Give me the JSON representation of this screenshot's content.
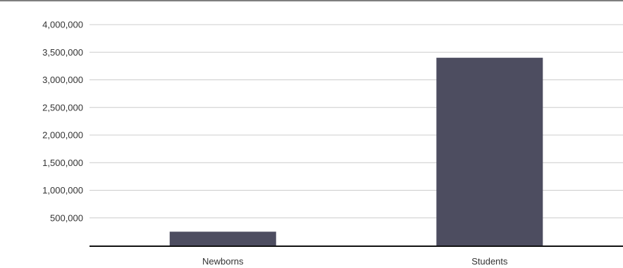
{
  "chart_data": {
    "type": "bar",
    "title": "",
    "xlabel": "",
    "ylabel": "",
    "categories": [
      "Newborns",
      "Students"
    ],
    "values": [
      250000,
      3400000
    ],
    "ylim": [
      0,
      4000000
    ],
    "yticks": [
      500000,
      1000000,
      1500000,
      2000000,
      2500000,
      3000000,
      3500000,
      4000000
    ],
    "ytick_labels": [
      "500,000",
      "1,000,000",
      "1,500,000",
      "2,000,000",
      "2,500,000",
      "3,000,000",
      "3,500,000",
      "4,000,000"
    ],
    "grid": true,
    "legend": "none",
    "colors": {
      "bar": "#4d4d60",
      "grid": "#cccccc",
      "axis": "#111111",
      "frame_top": "#555555"
    }
  }
}
